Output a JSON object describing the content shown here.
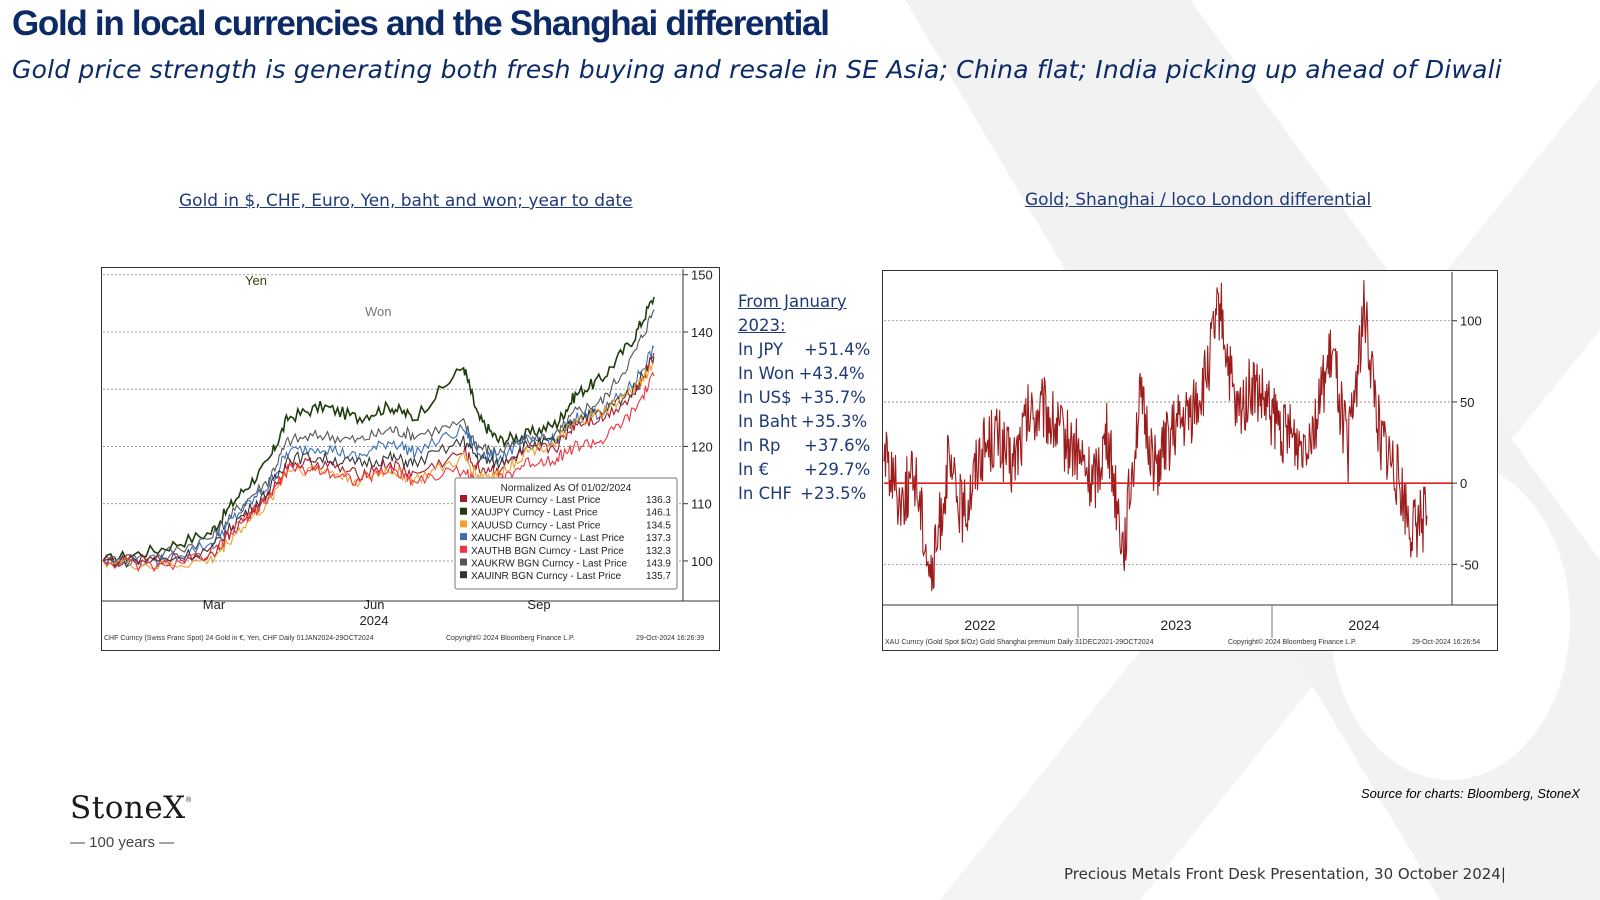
{
  "slide": {
    "title": "Gold in local currencies and the Shanghai differential",
    "subtitle": "Gold price strength is generating both fresh buying and resale in SE Asia; China flat; India picking up ahead of Diwali",
    "source": "Source for charts: Bloomberg, StoneX",
    "footer": "Precious Metals Front Desk Presentation, 30 October 2024|",
    "logo": {
      "name": "StoneX",
      "trademark": "®",
      "tagline": "— 100 years —"
    }
  },
  "stats": {
    "header": [
      "From January",
      "2023:"
    ],
    "rows": [
      {
        "label": "In JPY",
        "value": "+51.4%"
      },
      {
        "label": "In Won",
        "value": "+43.4%"
      },
      {
        "label": "In US$",
        "value": "+35.7%"
      },
      {
        "label": "In Baht",
        "value": "+35.3%"
      },
      {
        "label": "In Rp",
        "value": "+37.6%"
      },
      {
        "label": "In €",
        "value": "+29.7%"
      },
      {
        "label": "In CHF",
        "value": "+23.5%"
      }
    ]
  },
  "colors": {
    "title": "#0c2a66",
    "eur": "#a3192b",
    "jpy": "#1f3d0c",
    "usd": "#f0a030",
    "chf": "#3a6fb5",
    "thb": "#ef3340",
    "krw": "#555555",
    "inr": "#333333",
    "shanghai": "#9c1c1c",
    "zero_line": "#e21d1d"
  },
  "chart_data": [
    {
      "type": "line",
      "title": "Gold in $, CHF, Euro, Yen, baht and won; year to date",
      "x_tick_labels": [
        "Mar",
        "Jun",
        "Sep"
      ],
      "x_year_label": "2024",
      "y_ticks": [
        100,
        110,
        120,
        130,
        140,
        150
      ],
      "ylim": [
        93,
        151
      ],
      "grid": true,
      "annotations": [
        "Yen",
        "Won"
      ],
      "legend": {
        "position": "bottom-right",
        "title": "Normalized As Of 01/02/2024",
        "entries": [
          {
            "name": "XAUEUR Curncy - Last Price",
            "value": "136.3",
            "color": "#a3192b"
          },
          {
            "name": "XAUJPY Curncy - Last Price",
            "value": "146.1",
            "color": "#1f3d0c"
          },
          {
            "name": "XAUUSD Curncy - Last Price",
            "value": "134.5",
            "color": "#f0a030"
          },
          {
            "name": "XAUCHF BGN Curncy - Last Price",
            "value": "137.3",
            "color": "#3a6fb5"
          },
          {
            "name": "XAUTHB BGN Curncy - Last Price",
            "value": "132.3",
            "color": "#ef3340"
          },
          {
            "name": "XAUKRW BGN Curncy - Last Price",
            "value": "143.9",
            "color": "#555555"
          },
          {
            "name": "XAUINR BGN Curncy - Last Price",
            "value": "135.7",
            "color": "#333333"
          }
        ]
      },
      "x_dates": [
        "2024-01-02",
        "2024-02-01",
        "2024-03-01",
        "2024-03-15",
        "2024-04-01",
        "2024-04-12",
        "2024-05-01",
        "2024-05-20",
        "2024-06-07",
        "2024-06-20",
        "2024-07-17",
        "2024-07-25",
        "2024-08-05",
        "2024-08-20",
        "2024-09-06",
        "2024-09-16",
        "2024-10-01",
        "2024-10-18",
        "2024-10-29"
      ],
      "series": [
        {
          "name": "XAUJPY Curncy",
          "values": [
            100,
            102,
            105,
            111,
            117,
            125,
            127,
            125,
            127,
            125,
            134,
            125,
            121,
            122,
            124,
            129,
            132,
            139,
            146.1
          ]
        },
        {
          "name": "XAUKRW BGN Curncy",
          "values": [
            100,
            101,
            104,
            109,
            114,
            121,
            122,
            121,
            123,
            122,
            124,
            120,
            119,
            121,
            122,
            126,
            128,
            136,
            143.9
          ]
        },
        {
          "name": "XAUCHF BGN Curncy",
          "values": [
            100,
            100,
            103,
            108,
            113,
            119,
            120,
            118,
            121,
            119,
            123,
            119,
            118,
            121,
            121,
            125,
            126,
            131,
            137.3
          ]
        },
        {
          "name": "XAUINR BGN Curncy",
          "values": [
            100,
            100,
            102,
            107,
            112,
            118,
            118,
            117,
            118,
            117,
            121,
            118,
            117,
            120,
            121,
            125,
            126,
            130,
            135.7
          ]
        },
        {
          "name": "XAUEUR Curncy",
          "values": [
            100,
            100,
            101,
            106,
            111,
            117,
            117,
            115,
            117,
            115,
            119,
            116,
            116,
            119,
            120,
            124,
            125,
            129,
            136.3
          ]
        },
        {
          "name": "XAUUSD Curncy",
          "values": [
            100,
            99,
            100,
            105,
            110,
            116,
            116,
            114,
            116,
            114,
            118,
            115,
            115,
            119,
            121,
            124,
            126,
            130,
            134.5
          ]
        },
        {
          "name": "XAUTHB BGN Curncy",
          "values": [
            100,
            99,
            101,
            106,
            111,
            116,
            116,
            114,
            116,
            114,
            116,
            113,
            114,
            117,
            118,
            120,
            121,
            126,
            132.3
          ]
        }
      ],
      "footer_text": [
        "CHF Curncy (Swiss Franc Spot) 24 Gold in €, Yen, CHF   Daily 01JAN2024-29OCT2024",
        "Copyright© 2024 Bloomberg Finance L.P.",
        "29-Oct-2024 16:26:39"
      ]
    },
    {
      "type": "line",
      "title": "Gold; Shanghai / loco London differential",
      "x_tick_labels": [
        "2022",
        "2023",
        "2024"
      ],
      "y_ticks": [
        -50,
        0,
        50,
        100
      ],
      "ylim": [
        -75,
        130
      ],
      "grid": true,
      "series": [
        {
          "name": "Gold Shanghai premium",
          "x": [
            "2021-12-31",
            "2022-02-01",
            "2022-03-01",
            "2022-04-01",
            "2022-05-01",
            "2022-06-01",
            "2022-07-01",
            "2022-08-01",
            "2022-09-01",
            "2022-10-01",
            "2022-11-01",
            "2022-12-01",
            "2023-01-01",
            "2023-02-01",
            "2023-03-01",
            "2023-04-01",
            "2023-05-01",
            "2023-06-01",
            "2023-07-01",
            "2023-08-01",
            "2023-09-01",
            "2023-10-01",
            "2023-11-01",
            "2023-12-01",
            "2024-01-01",
            "2024-02-01",
            "2024-03-01",
            "2024-04-01",
            "2024-05-01",
            "2024-06-01",
            "2024-07-01",
            "2024-08-01",
            "2024-09-01",
            "2024-10-01",
            "2024-10-29"
          ],
          "values": [
            20,
            -10,
            5,
            -60,
            10,
            -20,
            20,
            30,
            10,
            40,
            45,
            30,
            20,
            0,
            30,
            -40,
            50,
            10,
            30,
            40,
            60,
            110,
            40,
            60,
            45,
            30,
            25,
            40,
            80,
            20,
            105,
            30,
            5,
            -30,
            -20
          ]
        }
      ],
      "reference_lines": [
        {
          "y": 0,
          "color": "#e21d1d"
        }
      ],
      "footer_text": [
        "XAU Curncy (Gold Spot  $/Oz) Gold Shanghai premium   Daily 31DEC2021-29OCT2024",
        "Copyright© 2024 Bloomberg Finance L.P.",
        "29-Oct-2024 16:26:54"
      ]
    }
  ]
}
